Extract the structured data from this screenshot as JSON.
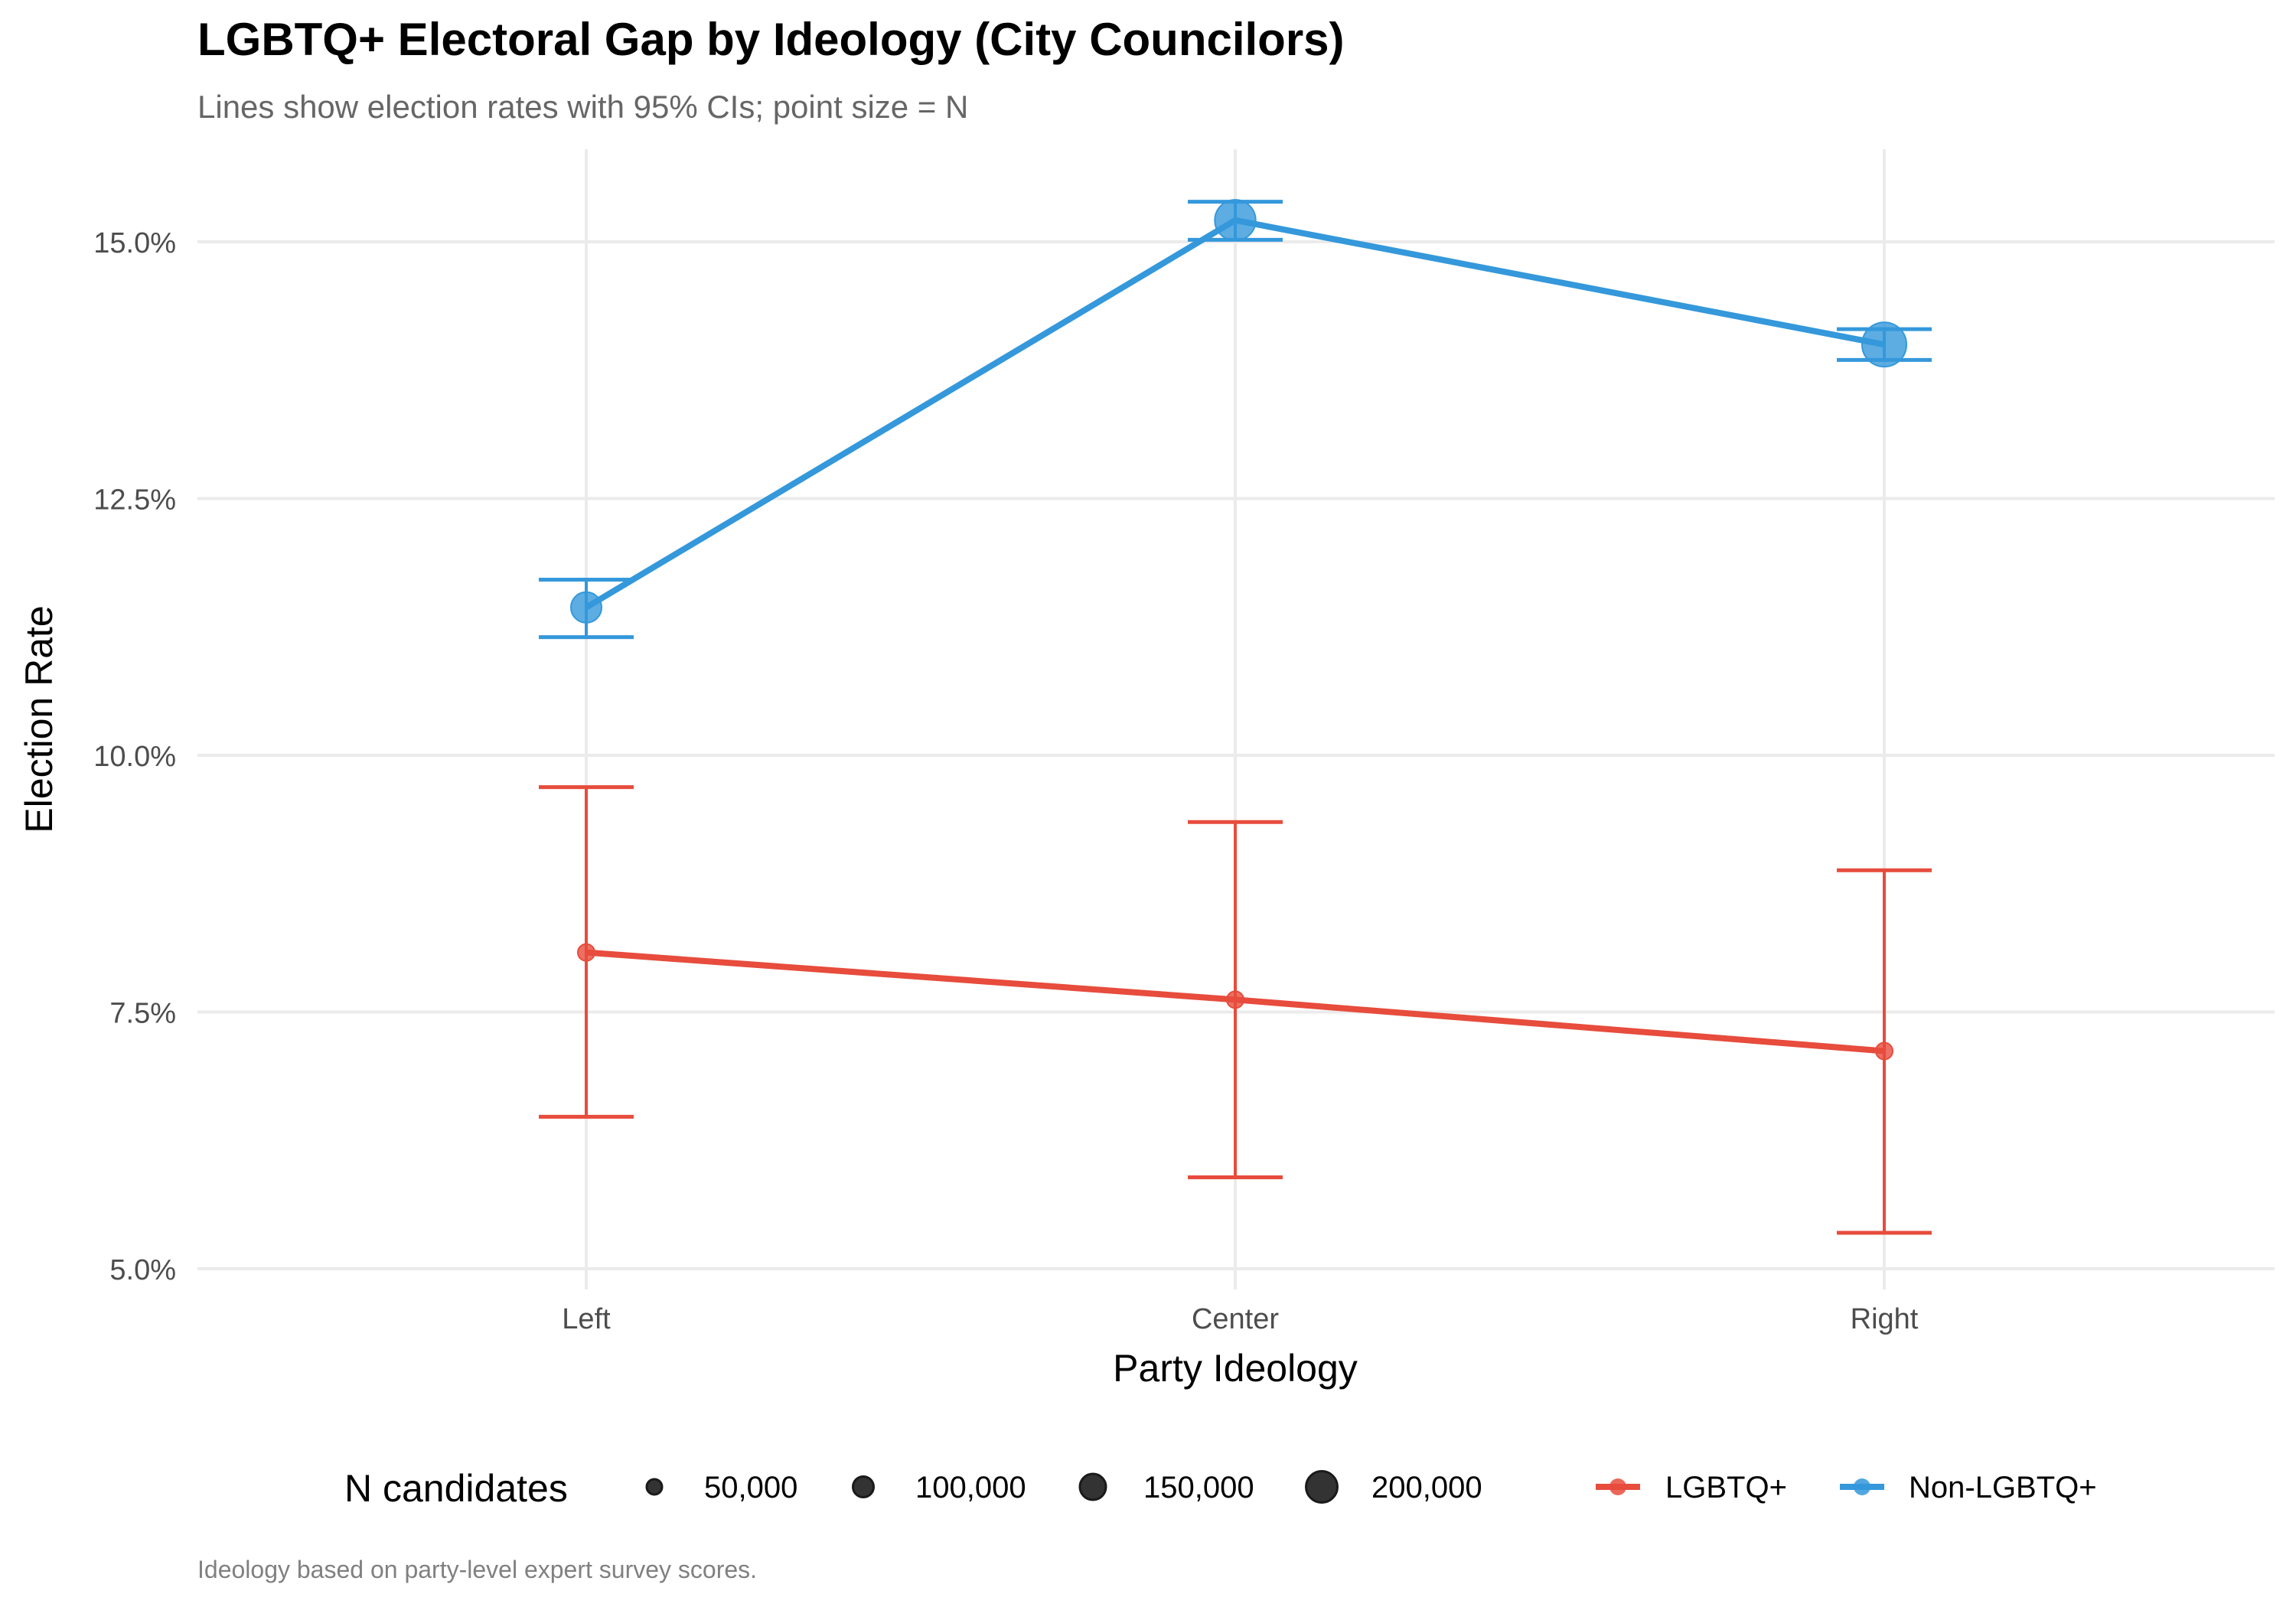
{
  "chart_data": {
    "type": "line",
    "title": "LGBTQ+ Electoral Gap by Ideology (City Councilors)",
    "subtitle": "Lines show election rates with 95% CIs; point size = N",
    "xlabel": "Party Ideology",
    "ylabel": "Election Rate",
    "caption": "Ideology based on party-level expert survey scores.",
    "categories": [
      "Left",
      "Center",
      "Right"
    ],
    "ylim": [
      4.6,
      15.8
    ],
    "yticks": [
      5.0,
      7.5,
      10.0,
      12.5,
      15.0
    ],
    "ytick_labels": [
      "5.0%",
      "7.5%",
      "10.0%",
      "12.5%",
      "15.0%"
    ],
    "grid": true,
    "series": [
      {
        "name": "LGBTQ+",
        "color": "#e74c3c",
        "values": [
          8.08,
          7.62,
          7.12
        ],
        "ci_lower": [
          6.48,
          5.89,
          5.35
        ],
        "ci_upper": [
          9.69,
          9.35,
          8.88
        ],
        "n_estimate": [
          3000,
          3000,
          3000
        ]
      },
      {
        "name": "Non-LGBTQ+",
        "color": "#3498db",
        "values": [
          11.44,
          15.21,
          14.0
        ],
        "ci_lower": [
          11.15,
          15.02,
          13.85
        ],
        "ci_upper": [
          11.71,
          15.39,
          14.15
        ],
        "n_estimate": [
          70000,
          160000,
          200000
        ]
      }
    ],
    "size_legend": {
      "title": "N candidates",
      "breaks": [
        50000,
        100000,
        150000,
        200000
      ],
      "labels": [
        "50,000",
        "100,000",
        "150,000",
        "200,000"
      ]
    },
    "color_legend": {
      "labels": [
        "LGBTQ+",
        "Non-LGBTQ+"
      ],
      "colors": [
        "#e74c3c",
        "#3498db"
      ]
    },
    "legend_position": "bottom"
  }
}
